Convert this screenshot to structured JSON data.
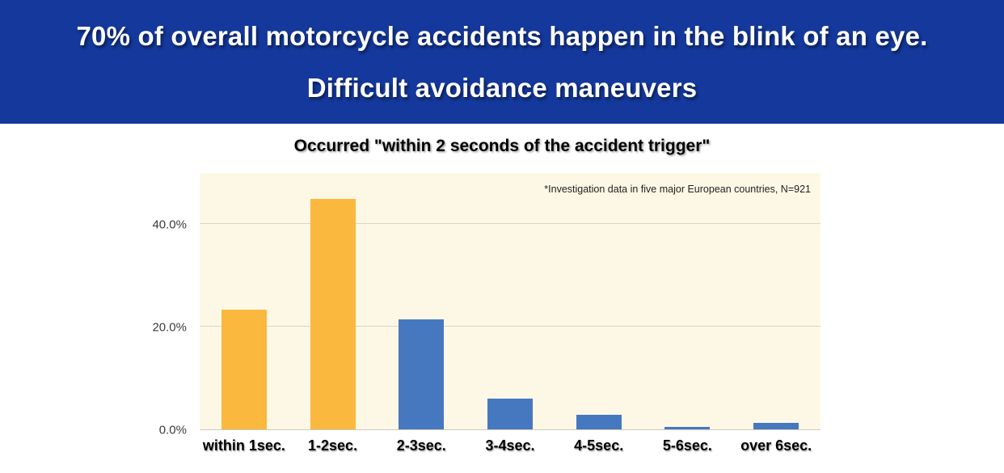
{
  "header": {
    "line1": "70% of overall motorcycle accidents happen in the blink of an eye.",
    "line2": "Difficult avoidance maneuvers"
  },
  "chart_data": {
    "type": "bar",
    "title": "Occurred \"within 2 seconds of the accident trigger\"",
    "annotation": "*Investigation data in five major European countries, N=921",
    "categories": [
      "within 1sec.",
      "1-2sec.",
      "2-3sec.",
      "3-4sec.",
      "4-5sec.",
      "5-6sec.",
      "over 6sec."
    ],
    "values": [
      23.3,
      45.0,
      21.4,
      6.0,
      2.8,
      0.5,
      1.3
    ],
    "unit": "%",
    "bar_colors": [
      "#FBB83E",
      "#FBB83E",
      "#4678C0",
      "#4678C0",
      "#4678C0",
      "#4678C0",
      "#4678C0"
    ],
    "xlabel": "",
    "ylabel": "",
    "ylim": [
      0,
      50
    ],
    "yticks": [
      0,
      20,
      40
    ],
    "ytick_labels": [
      "0.0%",
      "20.0%",
      "40.0%"
    ],
    "grid": true,
    "legend": false
  },
  "theme": {
    "banner_bg": "#14389B",
    "banner_text": "#FFFFFF",
    "plot_bg": "#FDF8E6",
    "grid_color": "#D9D5C9",
    "baseline_color": "#CCC9BE",
    "accent_orange": "#FBB83E",
    "accent_blue": "#4678C0"
  }
}
